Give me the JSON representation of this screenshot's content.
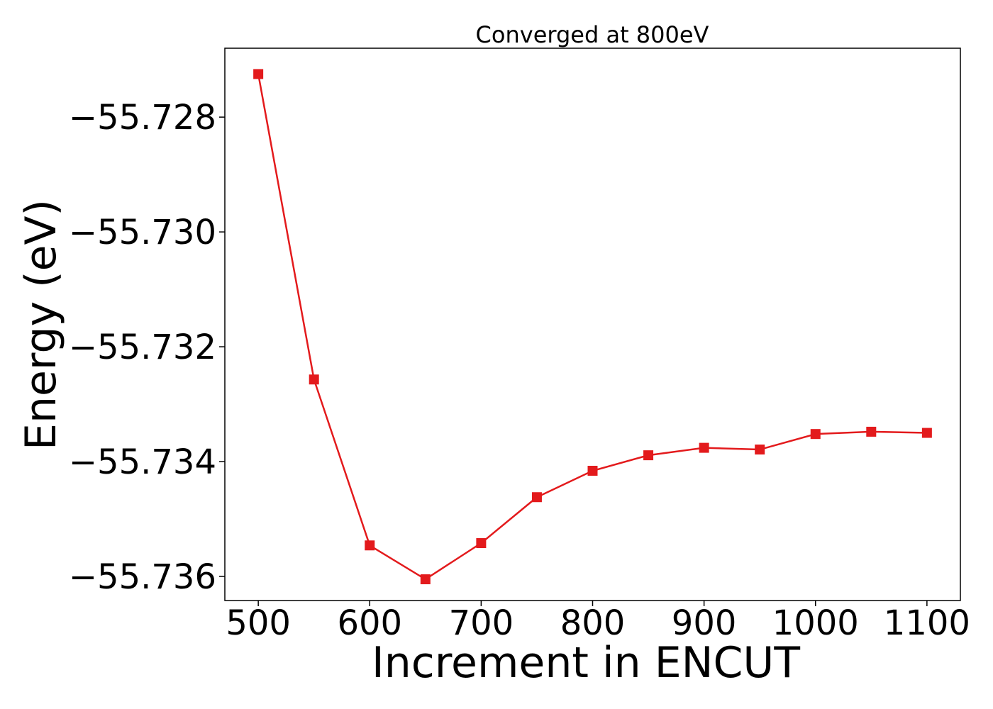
{
  "chart_data": {
    "type": "line",
    "title": "Converged at 800eV",
    "xlabel": "Increment in ENCUT",
    "ylabel": "Energy (eV)",
    "x": [
      500,
      550,
      600,
      650,
      700,
      750,
      800,
      850,
      900,
      950,
      1000,
      1050,
      1100
    ],
    "series": [
      {
        "values": [
          -55.72725,
          -55.73257,
          -55.73546,
          -55.73605,
          -55.73542,
          -55.73462,
          -55.73416,
          -55.73389,
          -55.73376,
          -55.73379,
          -55.73352,
          -55.73348,
          -55.7335
        ],
        "color": "#e31a1c",
        "marker": "square"
      }
    ],
    "xticks": [
      500,
      600,
      700,
      800,
      900,
      1000,
      1100
    ],
    "xtick_labels": [
      "500",
      "600",
      "700",
      "800",
      "900",
      "1000",
      "1100"
    ],
    "yticks": [
      -55.728,
      -55.73,
      -55.732,
      -55.734,
      -55.736
    ],
    "ytick_labels": [
      "−55.728",
      "−55.730",
      "−55.732",
      "−55.734",
      "−55.736"
    ],
    "xlim": [
      470,
      1130
    ],
    "ylim": [
      -55.73642,
      -55.7268
    ],
    "grid": false,
    "legend": "none"
  }
}
